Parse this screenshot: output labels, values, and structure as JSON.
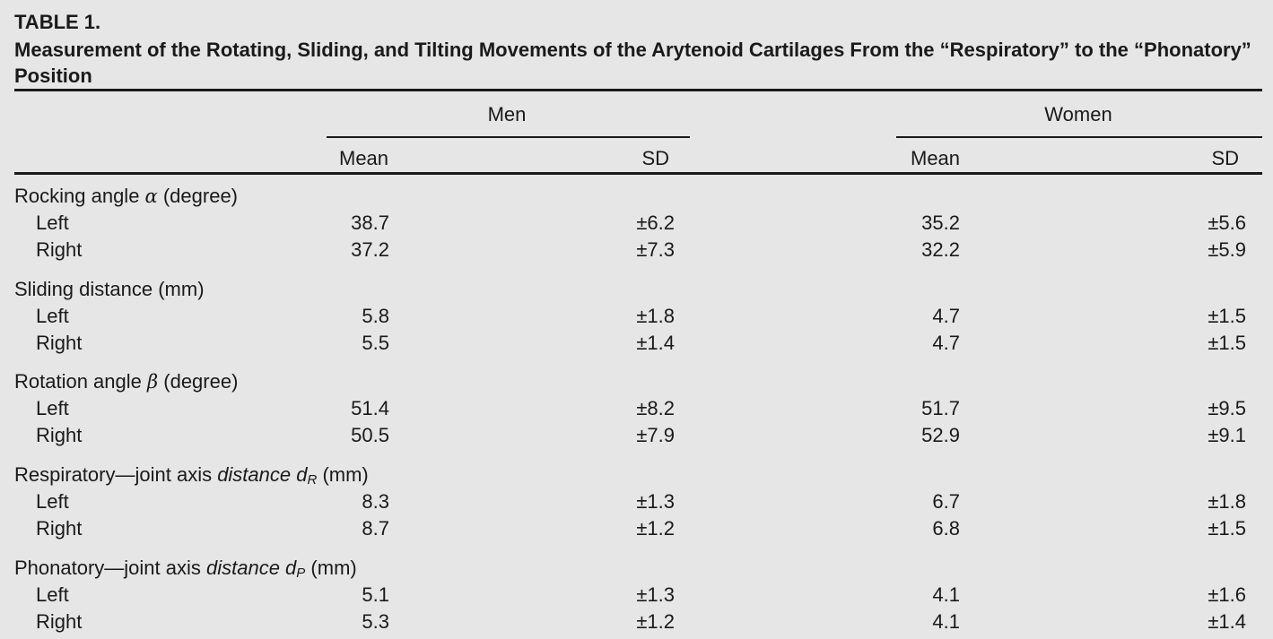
{
  "table": {
    "label": "TABLE 1.",
    "caption": "Measurement of the Rotating, Sliding, and Tilting Movements of the Arytenoid Cartilages From the “Respiratory” to the “Phonatory” Position",
    "group_headers": {
      "men": "Men",
      "women": "Women"
    },
    "sub_headers": {
      "mean": "Mean",
      "sd": "SD"
    },
    "sections": [
      {
        "title_pre": "Rocking angle ",
        "symbol": "α",
        "title_ital": "",
        "subscript": "",
        "title_post": " (degree)",
        "rows": [
          {
            "label": "Left",
            "men_mean": "38.7",
            "men_sd": "±6.2",
            "women_mean": "35.2",
            "women_sd": "±5.6"
          },
          {
            "label": "Right",
            "men_mean": "37.2",
            "men_sd": "±7.3",
            "women_mean": "32.2",
            "women_sd": "±5.9"
          }
        ]
      },
      {
        "title_pre": "Sliding distance (mm)",
        "symbol": "",
        "title_ital": "",
        "subscript": "",
        "title_post": "",
        "rows": [
          {
            "label": "Left",
            "men_mean": "5.8",
            "men_sd": "±1.8",
            "women_mean": "4.7",
            "women_sd": "±1.5"
          },
          {
            "label": "Right",
            "men_mean": "5.5",
            "men_sd": "±1.4",
            "women_mean": "4.7",
            "women_sd": "±1.5"
          }
        ]
      },
      {
        "title_pre": "Rotation angle ",
        "symbol": "β",
        "title_ital": "",
        "subscript": "",
        "title_post": " (degree)",
        "rows": [
          {
            "label": "Left",
            "men_mean": "51.4",
            "men_sd": "±8.2",
            "women_mean": "51.7",
            "women_sd": "±9.5"
          },
          {
            "label": "Right",
            "men_mean": "50.5",
            "men_sd": "±7.9",
            "women_mean": "52.9",
            "women_sd": "±9.1"
          }
        ]
      },
      {
        "title_pre": "Respiratory—joint axis ",
        "symbol": "",
        "title_ital": "distance d",
        "subscript": "R",
        "title_post": " (mm)",
        "rows": [
          {
            "label": "Left",
            "men_mean": "8.3",
            "men_sd": "±1.3",
            "women_mean": "6.7",
            "women_sd": "±1.8"
          },
          {
            "label": "Right",
            "men_mean": "8.7",
            "men_sd": "±1.2",
            "women_mean": "6.8",
            "women_sd": "±1.5"
          }
        ]
      },
      {
        "title_pre": "Phonatory—joint axis ",
        "symbol": "",
        "title_ital": "distance d",
        "subscript": "P",
        "title_post": " (mm)",
        "rows": [
          {
            "label": "Left",
            "men_mean": "5.1",
            "men_sd": "±1.3",
            "women_mean": "4.1",
            "women_sd": "±1.6"
          },
          {
            "label": "Right",
            "men_mean": "5.3",
            "men_sd": "±1.2",
            "women_mean": "4.1",
            "women_sd": "±1.4"
          }
        ]
      }
    ]
  }
}
